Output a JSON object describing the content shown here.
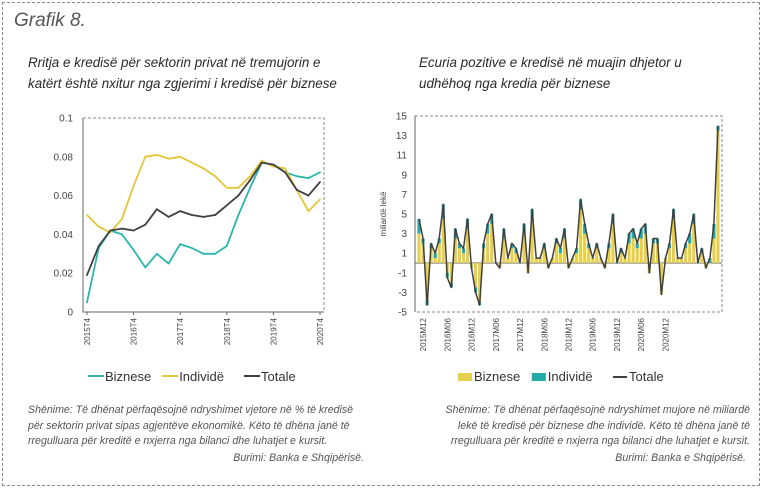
{
  "figure": {
    "label": "Grafik 8."
  },
  "left": {
    "title_line1": "Rritja e kredisë për sektorin privat në tremujorin e",
    "title_line2": "katërt është nxitur nga zgjerimi i kredisë për biznese",
    "note_line1": "Shënime: Të dhënat përfaqësojnë ndryshimet vjetore në % të kredisë",
    "note_line2": "për sektorin privat sipas agjentëve ekonomikë. Këto të dhëna janë të",
    "note_line3": "rregulluara për kreditë e nxjerra nga bilanci dhe luhatjet e kursit.",
    "source": "Burimi: Banka e Shqipërisë."
  },
  "right": {
    "title_line1": "Ecuria pozitive e kredisë në muajin dhjetor u",
    "title_line2": "udhëhoq nga kredia për biznese",
    "note_line1": "Shënime: Të dhënat përfaqësojnë ndryshimet mujore në miliardë",
    "note_line2": "lekë të kredisë për biznese dhe individë. Këto të dhëna janë të",
    "note_line3": "rregulluara për kreditë e nxjerra nga bilanci dhe luhatjet e kursit.",
    "source": "Burimi: Banka e Shqipërisë."
  },
  "colors": {
    "biznese": "#2bb5ad",
    "individe": "#e2c638",
    "totale": "#404040",
    "bar_biznese": "#e8cf4a",
    "bar_individe": "#22a9a8",
    "axis": "#666666",
    "border": "#8a8a8a"
  },
  "chart_data": [
    {
      "type": "line",
      "ylabel": "",
      "ylim": [
        0,
        0.1
      ],
      "yticks": [
        "0",
        "0.02",
        "0.04",
        "0.06",
        "0.08",
        "0.1"
      ],
      "x_tick_labels": [
        "2015T4",
        "2016T4",
        "2017T4",
        "2018T4",
        "2019T4",
        "2020T4"
      ],
      "x": [
        "2015T4",
        "2016T1",
        "2016T2",
        "2016T3",
        "2016T4",
        "2017T1",
        "2017T2",
        "2017T3",
        "2017T4",
        "2018T1",
        "2018T2",
        "2018T3",
        "2018T4",
        "2019T1",
        "2019T2",
        "2019T3",
        "2019T4",
        "2020T1",
        "2020T2",
        "2020T3",
        "2020T4"
      ],
      "series": [
        {
          "name": "Biznese",
          "values": [
            0.005,
            0.033,
            0.042,
            0.04,
            0.032,
            0.023,
            0.03,
            0.025,
            0.035,
            0.033,
            0.03,
            0.03,
            0.034,
            0.05,
            0.064,
            0.077,
            0.076,
            0.072,
            0.07,
            0.069,
            0.072
          ]
        },
        {
          "name": "Individë",
          "values": [
            0.05,
            0.044,
            0.041,
            0.048,
            0.065,
            0.08,
            0.081,
            0.079,
            0.08,
            0.077,
            0.074,
            0.07,
            0.064,
            0.064,
            0.07,
            0.078,
            0.075,
            0.074,
            0.063,
            0.052,
            0.058
          ]
        },
        {
          "name": "Totale",
          "values": [
            0.019,
            0.034,
            0.042,
            0.043,
            0.042,
            0.045,
            0.053,
            0.049,
            0.052,
            0.05,
            0.049,
            0.05,
            0.055,
            0.06,
            0.068,
            0.077,
            0.076,
            0.072,
            0.063,
            0.06,
            0.067
          ]
        }
      ],
      "legend": "bottom"
    },
    {
      "type": "bar",
      "ylabel": "miliardë lekë",
      "ylim": [
        -5,
        15
      ],
      "yticks": [
        "-5",
        "-3",
        "-1",
        "1",
        "3",
        "5",
        "7",
        "9",
        "11",
        "13",
        "15"
      ],
      "x_tick_labels": [
        "2015M12",
        "2016M06",
        "2016M12",
        "2017M06",
        "2017M12",
        "2018M06",
        "2018M12",
        "2019M06",
        "2019M12",
        "2020M06",
        "2020M12"
      ],
      "series": [
        {
          "name": "Biznese",
          "stacked": true,
          "values": [
            3,
            2,
            -3.8,
            1.5,
            0.5,
            2,
            4.5,
            -1,
            -2,
            2.5,
            1.5,
            1,
            3.5,
            -0.5,
            -2.5,
            -4,
            1.5,
            3,
            4,
            0,
            -0.5,
            2.5,
            0.5,
            1.5,
            1,
            0,
            3,
            -1,
            4.5,
            0.5,
            0.5,
            1.5,
            -0.5,
            0.5,
            2,
            1,
            2.5,
            -0.5,
            0.5,
            1,
            5.5,
            3,
            1.5,
            0.5,
            1.5,
            0.5,
            -0.5,
            1.5,
            4,
            0,
            1,
            0.5,
            2,
            2.5,
            1.5,
            2.5,
            3,
            -1,
            2,
            2,
            -3.2,
            0.5,
            1.5,
            4.5,
            0.5,
            0.5,
            1.5,
            2,
            4,
            0,
            1,
            -0.5,
            0,
            2.5,
            13.5
          ]
        },
        {
          "name": "Individë",
          "stacked": true,
          "values": [
            1.5,
            0.5,
            -0.5,
            0.5,
            0.5,
            0.5,
            1.5,
            -0.5,
            -0.5,
            1,
            0.5,
            0.5,
            1,
            0,
            -0.5,
            -0.3,
            0.5,
            1,
            1,
            0,
            0,
            1,
            0,
            0.5,
            0.5,
            0,
            1,
            0,
            1,
            0,
            0,
            0.5,
            0,
            0,
            0.5,
            0.5,
            1,
            0,
            0,
            0.5,
            1,
            1,
            0.5,
            0,
            0.5,
            0,
            0,
            0.5,
            1,
            0,
            0.5,
            0,
            1,
            1,
            0.5,
            1,
            1,
            0,
            0.5,
            0.5,
            0,
            0,
            0.5,
            1,
            0,
            0,
            0.5,
            1,
            1,
            0,
            0.5,
            0,
            0.5,
            1.5,
            0.5
          ]
        },
        {
          "name": "Totale",
          "type": "line",
          "values": [
            4.5,
            2.5,
            -4.3,
            2,
            1,
            2.5,
            6,
            -1.5,
            -2.5,
            3.5,
            2,
            1.5,
            4.5,
            -0.5,
            -3,
            -4.3,
            2,
            4,
            5,
            0,
            -0.5,
            3.5,
            0.5,
            2,
            1.5,
            0,
            4,
            -1,
            5.5,
            0.5,
            0.5,
            2,
            -0.5,
            0.5,
            2.5,
            1.5,
            3.5,
            -0.5,
            0.5,
            1.5,
            6.5,
            4,
            2,
            0.5,
            2,
            0.5,
            -0.5,
            2,
            5,
            0,
            1.5,
            0.5,
            3,
            3.5,
            2,
            3.5,
            4,
            -1,
            2.5,
            2.5,
            -3.2,
            0.5,
            2,
            5.5,
            0.5,
            0.5,
            2,
            3,
            5,
            0,
            1.5,
            -0.5,
            0.5,
            4,
            14
          ]
        }
      ],
      "legend": "bottom"
    }
  ]
}
